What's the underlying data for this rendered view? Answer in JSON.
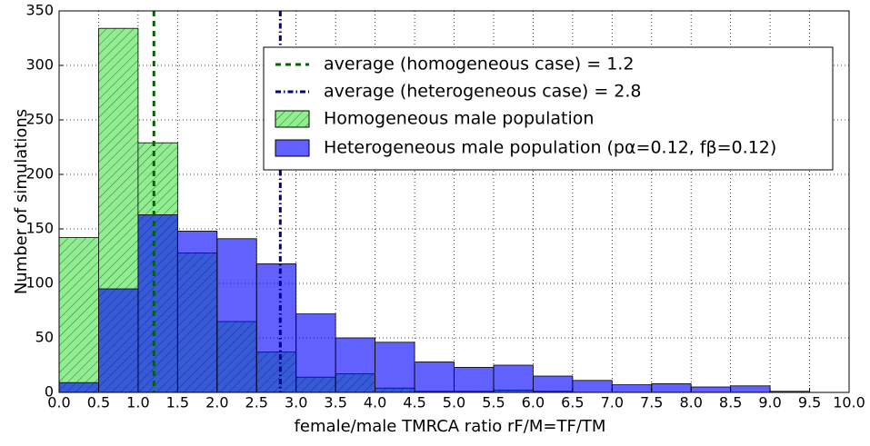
{
  "chart_data": {
    "type": "histogram",
    "xlabel": "female/male TMRCA ratio rF/M=TF/TM",
    "ylabel": "Number of simulations",
    "bins": [
      0,
      0.5,
      1,
      1.5,
      2,
      2.5,
      3,
      3.5,
      4,
      4.5,
      5,
      5.5,
      6,
      6.5,
      7,
      7.5,
      8,
      8.5,
      9,
      9.5,
      10
    ],
    "series": [
      {
        "name": "Homogeneous male population",
        "color": "#90ee90",
        "hatch": true,
        "values": [
          142,
          334,
          229,
          128,
          65,
          37,
          14,
          17,
          4,
          1,
          1,
          2,
          1,
          0,
          0,
          0,
          0,
          0,
          0,
          0
        ]
      },
      {
        "name": "Heterogeneous male population (pα=0.12, fβ=0.12)",
        "color": "#0000ff",
        "hatch": false,
        "values": [
          9,
          95,
          163,
          148,
          141,
          118,
          72,
          50,
          46,
          28,
          23,
          25,
          15,
          11,
          7,
          8,
          5,
          6,
          1,
          0
        ]
      }
    ],
    "vlines": [
      {
        "label": "average (homogeneous case) = 1.2",
        "value": 1.2,
        "color": "#006400",
        "dash": "6,5"
      },
      {
        "label": "average (heterogeneous case) = 2.8",
        "value": 2.8,
        "color": "#000080",
        "dash": "6,3,1.5,3"
      }
    ],
    "xlim": [
      0,
      10
    ],
    "ylim": [
      0,
      350
    ],
    "xticks": [
      {
        "value": 0,
        "label": "0.0"
      },
      {
        "value": 0.5,
        "label": "0.5"
      },
      {
        "value": 1,
        "label": "1.0"
      },
      {
        "value": 1.5,
        "label": "1.5"
      },
      {
        "value": 2,
        "label": "2.0"
      },
      {
        "value": 2.5,
        "label": "2.5"
      },
      {
        "value": 3,
        "label": "3.0"
      },
      {
        "value": 3.5,
        "label": "3.5"
      },
      {
        "value": 4,
        "label": "4.0"
      },
      {
        "value": 4.5,
        "label": "4.5"
      },
      {
        "value": 5,
        "label": "5.0"
      },
      {
        "value": 5.5,
        "label": "5.5"
      },
      {
        "value": 6,
        "label": "6.0"
      },
      {
        "value": 6.5,
        "label": "6.5"
      },
      {
        "value": 7,
        "label": "7.0"
      },
      {
        "value": 7.5,
        "label": "7.5"
      },
      {
        "value": 8,
        "label": "8.0"
      },
      {
        "value": 8.5,
        "label": "8.5"
      },
      {
        "value": 9,
        "label": "9.0"
      },
      {
        "value": 9.5,
        "label": "9.5"
      },
      {
        "value": 10,
        "label": "10.0"
      }
    ],
    "yticks": [
      0,
      50,
      100,
      150,
      200,
      250,
      300,
      350
    ],
    "grid": true
  }
}
